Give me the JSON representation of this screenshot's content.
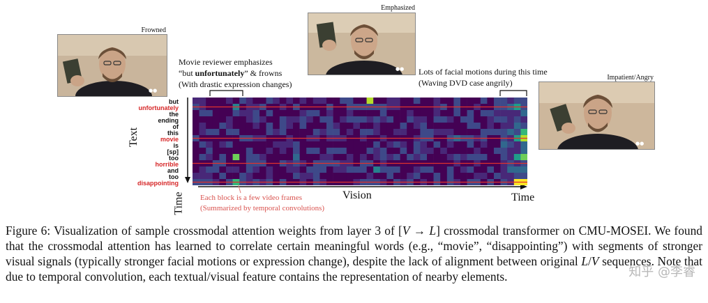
{
  "photos": {
    "frowned": "Frowned",
    "emphasized": "Emphasized",
    "angry": "Impatient/Angry"
  },
  "annotations": {
    "reviewer_line1": "Movie reviewer emphasizes",
    "reviewer_line2_pre": "“but ",
    "reviewer_line2_bold": "unfortunately",
    "reviewer_line2_post": "” & frowns",
    "reviewer_line3": "(With drastic expression changes)",
    "motion_line1": "Lots of facial motions during this time",
    "motion_line2": "(Waving DVD case angrily)",
    "block_line1": "Each block is a few video frames",
    "block_line2": "(Summarized by temporal convolutions)"
  },
  "axes": {
    "text": "Text",
    "time_left": "Time",
    "vision": "Vision",
    "time_bottom": "Time"
  },
  "words": [
    {
      "w": "but",
      "hl": false
    },
    {
      "w": "unfortunately",
      "hl": true
    },
    {
      "w": "the",
      "hl": false
    },
    {
      "w": "ending",
      "hl": false
    },
    {
      "w": "of",
      "hl": false
    },
    {
      "w": "this",
      "hl": false
    },
    {
      "w": "movie",
      "hl": true
    },
    {
      "w": "is",
      "hl": false
    },
    {
      "w": "[sp]",
      "hl": false
    },
    {
      "w": "too",
      "hl": false
    },
    {
      "w": "horrible",
      "hl": true
    },
    {
      "w": "and",
      "hl": false
    },
    {
      "w": "too",
      "hl": false
    },
    {
      "w": "disappointing",
      "hl": true
    }
  ],
  "chart_data": {
    "type": "heatmap",
    "rows": [
      "but",
      "unfortunately",
      "the",
      "ending",
      "of",
      "this",
      "movie",
      "is",
      "[sp]",
      "too",
      "horrible",
      "and",
      "too",
      "disappointing"
    ],
    "n_cols": 50,
    "highlighted_rows": [
      "unfortunately",
      "movie",
      "horrible",
      "disappointing"
    ],
    "strong_cells": [
      {
        "row": "but",
        "col": 26,
        "v": 0.9
      },
      {
        "row": "unfortunately",
        "col": 6,
        "v": 0.45
      },
      {
        "row": "unfortunately",
        "col": 48,
        "v": 0.6
      },
      {
        "row": "this",
        "col": 49,
        "v": 0.65
      },
      {
        "row": "movie",
        "col": 48,
        "v": 0.55
      },
      {
        "row": "movie",
        "col": 49,
        "v": 0.9
      },
      {
        "row": "too",
        "col": 6,
        "v": 0.75
      },
      {
        "row": "too",
        "col": 48,
        "v": 0.6
      },
      {
        "row": "too",
        "col": 49,
        "v": 0.8
      },
      {
        "row": "and",
        "col": 27,
        "v": 0.45
      },
      {
        "row": "disappointing",
        "col": 6,
        "v": 0.7
      },
      {
        "row": "disappointing",
        "col": 48,
        "v": 0.95
      },
      {
        "row": "disappointing",
        "col": 49,
        "v": 1.0
      }
    ],
    "colormap": [
      "#440154",
      "#482878",
      "#3e4989",
      "#31688e",
      "#26828e",
      "#1f9e89",
      "#35b779",
      "#6ece58",
      "#b5de2b",
      "#fde725"
    ]
  },
  "caption": {
    "prefix": "Figure 6: ",
    "part1": "Visualization of sample crossmodal attention weights from layer 3 of [",
    "V": "V",
    "arrow": " → ",
    "L": "L",
    "part2": "] crossmodal transformer on CMU-MOSEI. We found that the crossmodal attention has learned to correlate certain meaningful words (e.g., “movie”, “disappointing”) with segments of stronger visual signals (typically stronger facial motions or expression change), despite the lack of alignment between original ",
    "L2": "L",
    "slash": "/",
    "V2": "V",
    "part3": " sequences. Note that due to temporal convolution, each textual/visual feature contains the representation of nearby elements."
  },
  "watermark": "知乎 @李睿"
}
